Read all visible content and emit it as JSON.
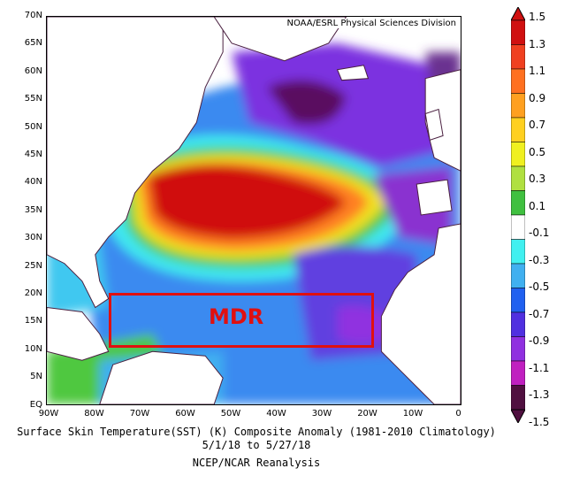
{
  "credit": "NOAA/ESRL Physical Sciences Division",
  "lat_labels": [
    "70N",
    "65N",
    "60N",
    "55N",
    "50N",
    "45N",
    "40N",
    "35N",
    "30N",
    "25N",
    "20N",
    "15N",
    "10N",
    "5N",
    "EQ"
  ],
  "lon_labels": [
    "90W",
    "80W",
    "70W",
    "60W",
    "50W",
    "40W",
    "30W",
    "20W",
    "10W",
    "0"
  ],
  "colorbar": {
    "labels": [
      "1.5",
      "1.3",
      "1.1",
      "0.9",
      "0.7",
      "0.5",
      "0.3",
      "0.1",
      "-0.1",
      "-0.3",
      "-0.5",
      "-0.7",
      "-0.9",
      "-1.1",
      "-1.3",
      "-1.5"
    ],
    "colors": [
      "#d01010",
      "#f04020",
      "#ff7020",
      "#ffa020",
      "#ffd020",
      "#f0f020",
      "#b0e040",
      "#40c040",
      "#ffffff",
      "#40f0f0",
      "#40b0f0",
      "#2060f0",
      "#5030e0",
      "#9030e0",
      "#c020c0",
      "#501040"
    ]
  },
  "annotation": "MDR",
  "caption": {
    "line1": "Surface Skin Temperature(SST) (K) Composite Anomaly (1981-2010 Climatology)",
    "line2": "5/1/18  to 5/27/18",
    "line3": "NCEP/NCAR Reanalysis"
  }
}
